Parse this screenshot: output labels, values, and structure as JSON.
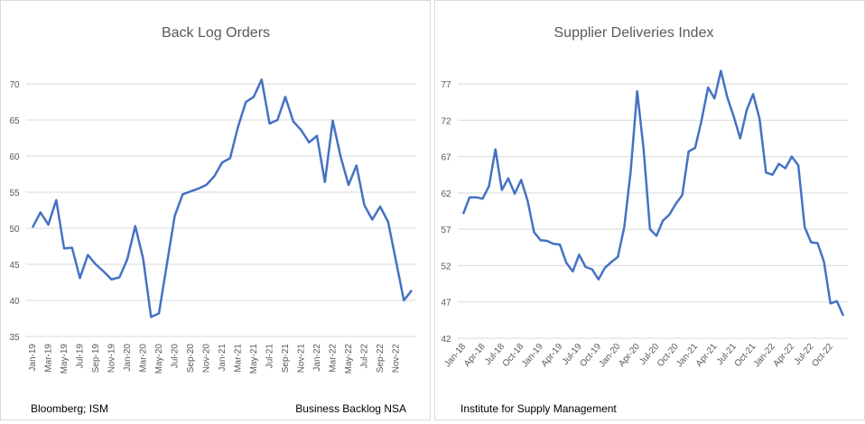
{
  "chart_data": [
    {
      "type": "line",
      "title": "Back Log Orders",
      "series": [
        {
          "color": "#4472c4",
          "values": [
            50.1,
            52.2,
            50.5,
            53.9,
            47.2,
            47.3,
            43.1,
            46.3,
            45.0,
            44.0,
            42.9,
            43.2,
            45.7,
            50.3,
            45.8,
            37.7,
            38.2,
            45.0,
            51.7,
            54.7,
            55.1,
            55.5,
            56.0,
            57.2,
            59.1,
            59.7,
            64.0,
            67.5,
            68.2,
            70.6,
            64.5,
            65.0,
            68.2,
            64.8,
            63.6,
            61.9,
            62.8,
            56.4,
            64.9,
            59.9,
            56.0,
            58.7,
            53.2,
            51.2,
            53.0,
            50.9,
            45.5,
            40.0,
            41.4
          ]
        }
      ],
      "ylim": [
        35,
        70
      ],
      "yticks": [
        "35",
        "40",
        "45",
        "50",
        "55",
        "60",
        "65",
        "70"
      ],
      "xticks": [
        "Jan-19",
        "Mar-19",
        "May-19",
        "Jul-19",
        "Sep-19",
        "Nov-19",
        "Jan-20",
        "Mar-20",
        "May-20",
        "Jul-20",
        "Sep-20",
        "Nov-20",
        "Jan-21",
        "Mar-21",
        "May-21",
        "Jul-21",
        "Sep-21",
        "Nov-21",
        "Jan-22",
        "Mar-22",
        "May-22",
        "Jul-22",
        "Sep-22",
        "Nov-22"
      ],
      "grid": true,
      "source": "Bloomberg; ISM",
      "note": "Business Backlog NSA"
    },
    {
      "type": "line",
      "title": "Supplier Deliveries Index",
      "series": [
        {
          "color": "#4472c4",
          "values": [
            59.1,
            61.4,
            61.4,
            61.2,
            62.9,
            68.0,
            62.4,
            64.0,
            61.9,
            63.8,
            60.9,
            56.6,
            55.5,
            55.4,
            55.0,
            54.9,
            52.4,
            51.2,
            53.5,
            51.8,
            51.5,
            50.1,
            51.7,
            52.5,
            53.2,
            57.3,
            65.0,
            76.0,
            68.0,
            57.0,
            56.1,
            58.2,
            59.0,
            60.5,
            61.7,
            67.7,
            68.2,
            72.0,
            76.5,
            75.0,
            78.8,
            75.1,
            72.5,
            69.5,
            73.4,
            75.6,
            72.2,
            64.8,
            64.5,
            66.0,
            65.4,
            67.0,
            65.8,
            57.3,
            55.2,
            55.1,
            52.5,
            46.8,
            47.1,
            45.1
          ]
        }
      ],
      "ylim": [
        42,
        77
      ],
      "yticks": [
        "42",
        "47",
        "52",
        "57",
        "62",
        "67",
        "72",
        "77"
      ],
      "xticks": [
        "Jan-18",
        "Apr-18",
        "Jul-18",
        "Oct-18",
        "Jan-19",
        "Apr-19",
        "Jul-19",
        "Oct-19",
        "Jan-20",
        "Apr-20",
        "Jul-20",
        "Oct-20",
        "Jan-21",
        "Apr-21",
        "Jul-21",
        "Oct-21",
        "Jan-22",
        "Apr-22",
        "Jul-22",
        "Oct-22"
      ],
      "grid": true,
      "source": "Institute for Supply Management"
    }
  ]
}
